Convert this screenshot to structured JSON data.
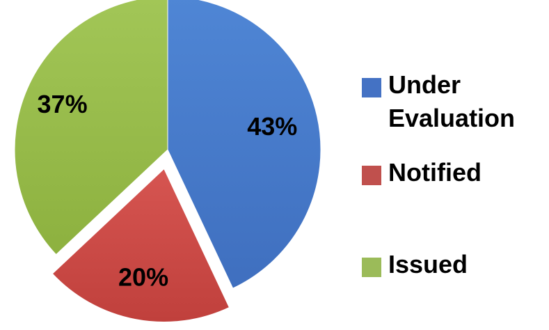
{
  "chart_data": {
    "type": "pie",
    "slices": [
      {
        "label": "Under Evaluation",
        "value": 43,
        "display": "43%",
        "color": "#3F6FBF",
        "color_light": "#4F86D5",
        "exploded": false
      },
      {
        "label": "Notified",
        "value": 20,
        "display": "20%",
        "color": "#C0403C",
        "color_light": "#D65551",
        "exploded": true
      },
      {
        "label": "Issued",
        "value": 37,
        "display": "37%",
        "color": "#8DB13F",
        "color_light": "#A2C657",
        "exploded": false
      }
    ],
    "title": "",
    "legend_position": "right"
  },
  "legend": {
    "items": [
      {
        "label": "Under Evaluation",
        "color": "#4472C4"
      },
      {
        "label": "Notified",
        "color": "#C0504D"
      },
      {
        "label": "Issued",
        "color": "#9BBB59"
      }
    ]
  }
}
